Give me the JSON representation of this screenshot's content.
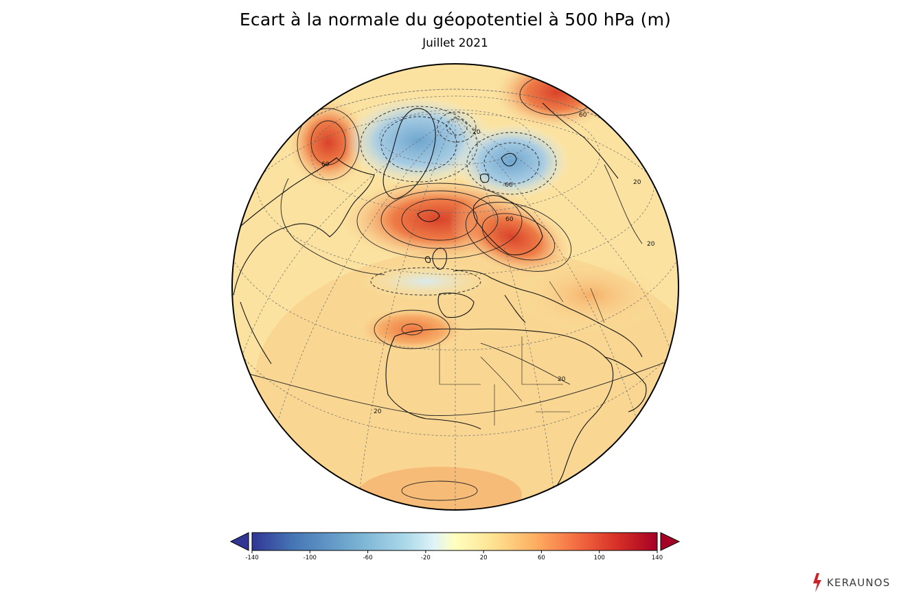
{
  "title": "Ecart à la normale du géopotentiel à 500 hPa (m)",
  "subtitle": "Juillet 2021",
  "map": {
    "projection": "orthographic",
    "center": "Europe / North Atlantic",
    "background_color": "#fbe3a1",
    "contour_labels": [
      "20",
      "20",
      "60",
      "60",
      "60",
      "-60",
      "20",
      "20",
      "20",
      "20"
    ],
    "anomalies": [
      {
        "name": "high-north-atlantic-iceland",
        "value": 100,
        "color": "#e0462a"
      },
      {
        "name": "high-scandinavia",
        "value": 100,
        "color": "#e0532d"
      },
      {
        "name": "high-canada-west",
        "value": 80,
        "color": "#ea7a43"
      },
      {
        "name": "high-siberia-north",
        "value": 90,
        "color": "#e0512d"
      },
      {
        "name": "low-canadian-arctic",
        "value": -60,
        "color": "#9ec3de"
      },
      {
        "name": "low-barents-sea",
        "value": -70,
        "color": "#7aaed2"
      },
      {
        "name": "low-bay-of-biscay",
        "value": -20,
        "color": "#e6f1f2"
      },
      {
        "name": "high-north-africa",
        "value": 40,
        "color": "#f4b167"
      }
    ]
  },
  "colorbar": {
    "min": -140,
    "max": 140,
    "ticks": [
      "-140",
      "-100",
      "-60",
      "-20",
      "20",
      "60",
      "100",
      "140"
    ],
    "tick_values": [
      -140,
      -100,
      -60,
      -20,
      20,
      60,
      100,
      140
    ],
    "colors": [
      "#313695",
      "#4575b4",
      "#74add1",
      "#abd9e9",
      "#e0f3f8",
      "#ffffbf",
      "#fee090",
      "#fdae61",
      "#f46d43",
      "#d73027",
      "#a50026"
    ],
    "extend_low_color": "#313695",
    "extend_high_color": "#a50026"
  },
  "logo": {
    "text": "KERAUNOS",
    "icon": "lightning-bolt-icon",
    "accent": "#d0202a"
  }
}
